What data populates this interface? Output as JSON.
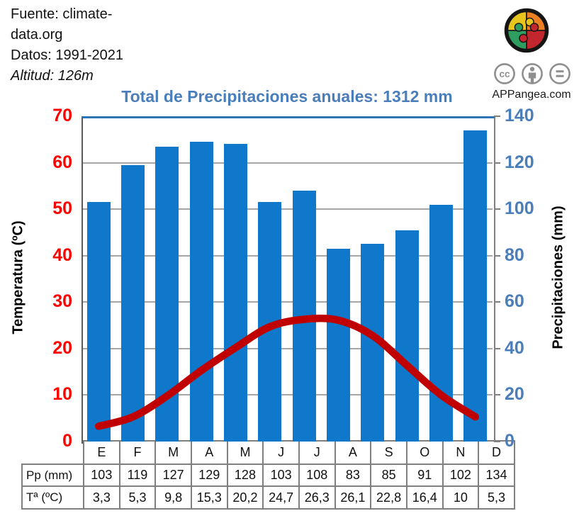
{
  "header": {
    "line1": "Fuente: climate-",
    "line2": "data.org",
    "line3": "Datos: 1991-2021",
    "line4": "Altitud: 126m"
  },
  "branding": {
    "site": "APPangea.com",
    "logo": "puzzle-globe-logo",
    "license_icons": [
      "cc-icon",
      "attribution-person-icon",
      "equals-no-derivatives-icon"
    ],
    "icon_color": "#8f8f8f"
  },
  "title": "Total de Precipitaciones anuales: 1312 mm",
  "title_color": "#4a7ebb",
  "chart_data": {
    "type": "bar+line",
    "categories": [
      "E",
      "F",
      "M",
      "A",
      "M",
      "J",
      "J",
      "A",
      "S",
      "O",
      "N",
      "D"
    ],
    "series": [
      {
        "name": "Pp (mm)",
        "type": "bar",
        "axis": "right",
        "values": [
          103,
          119,
          127,
          129,
          128,
          103,
          108,
          83,
          85,
          91,
          102,
          134
        ],
        "color": "#0f78cb"
      },
      {
        "name": "Tª (ºC)",
        "type": "line",
        "axis": "left",
        "values": [
          3.3,
          5.3,
          9.8,
          15.3,
          20.2,
          24.7,
          26.3,
          26.1,
          22.8,
          16.4,
          10,
          5.3
        ],
        "color": "#c00000"
      }
    ],
    "left_axis": {
      "label": "Temperatura (ºC)",
      "min": 0,
      "max": 70,
      "step": 10,
      "tick_color": "#ff0000"
    },
    "right_axis": {
      "label": "Precipitaciones (mm)",
      "min": 0,
      "max": 140,
      "step": 20,
      "tick_color": "#4a7ebb"
    },
    "grid": true,
    "gridline_color": "#a6a6a6",
    "annual_total_mm": 1312
  },
  "table": {
    "row_labels": [
      "Pp (mm)",
      "Tª (ºC)"
    ],
    "months": [
      "E",
      "F",
      "M",
      "A",
      "M",
      "J",
      "J",
      "A",
      "S",
      "O",
      "N",
      "D"
    ],
    "pp_values": [
      "103",
      "119",
      "127",
      "129",
      "128",
      "103",
      "108",
      "83",
      "85",
      "91",
      "102",
      "134"
    ],
    "temp_values": [
      "3,3",
      "5,3",
      "9,8",
      "15,3",
      "20,2",
      "24,7",
      "26,3",
      "26,1",
      "22,8",
      "16,4",
      "10",
      "5,3"
    ]
  }
}
